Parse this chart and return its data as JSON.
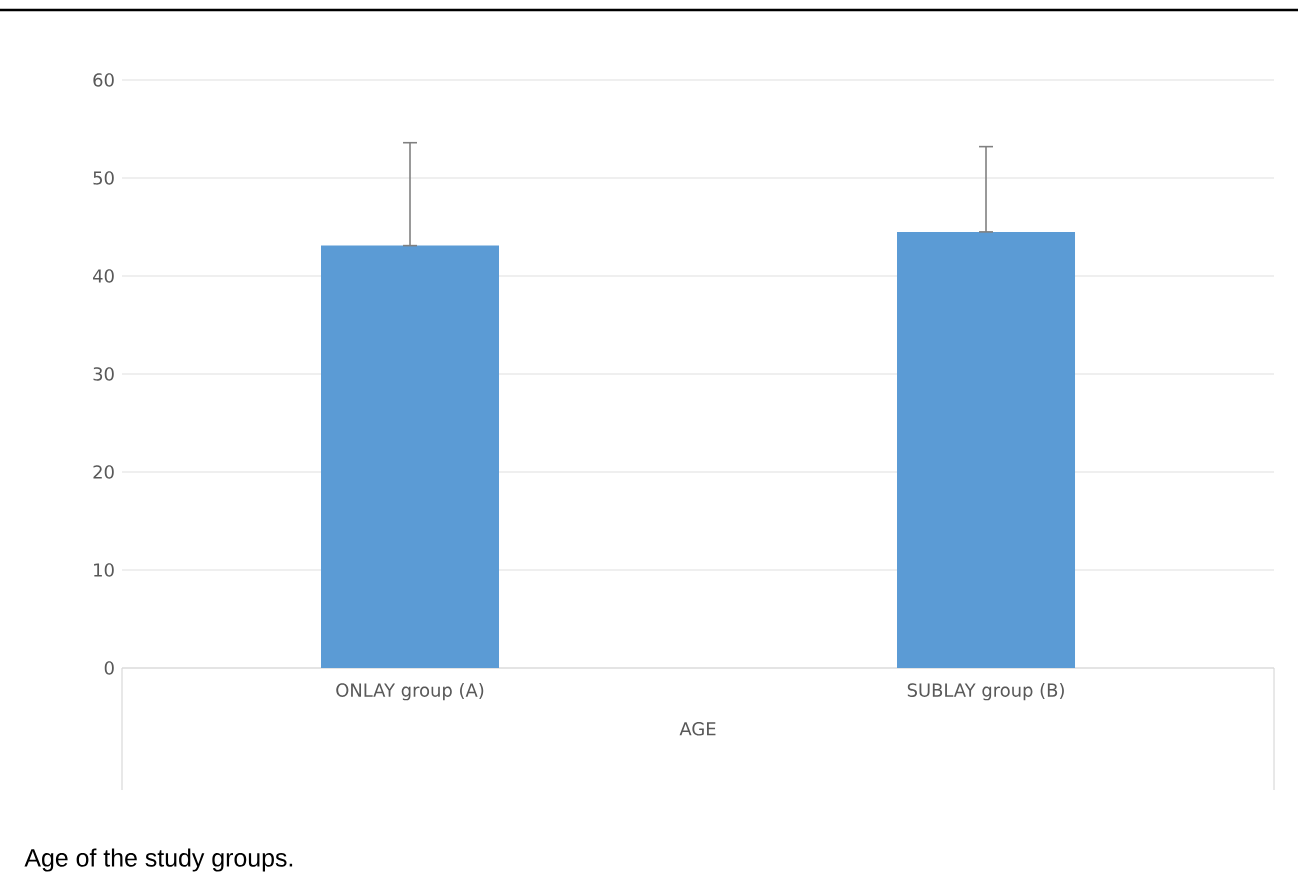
{
  "chart_data": {
    "type": "bar",
    "xlabel": "AGE",
    "categories": [
      "ONLAY group (A)",
      "SUBLAY group (B)"
    ],
    "values": [
      43.1,
      44.5
    ],
    "color": "#5b9bd5",
    "errors": [
      [
        43.1,
        53.6
      ],
      [
        44.5,
        53.2
      ]
    ],
    "ylim": [
      0,
      60
    ],
    "yticks": [
      0,
      10,
      20,
      30,
      40,
      50,
      60
    ],
    "grid": "y",
    "annotations": [
      "Age of the study groups."
    ]
  }
}
